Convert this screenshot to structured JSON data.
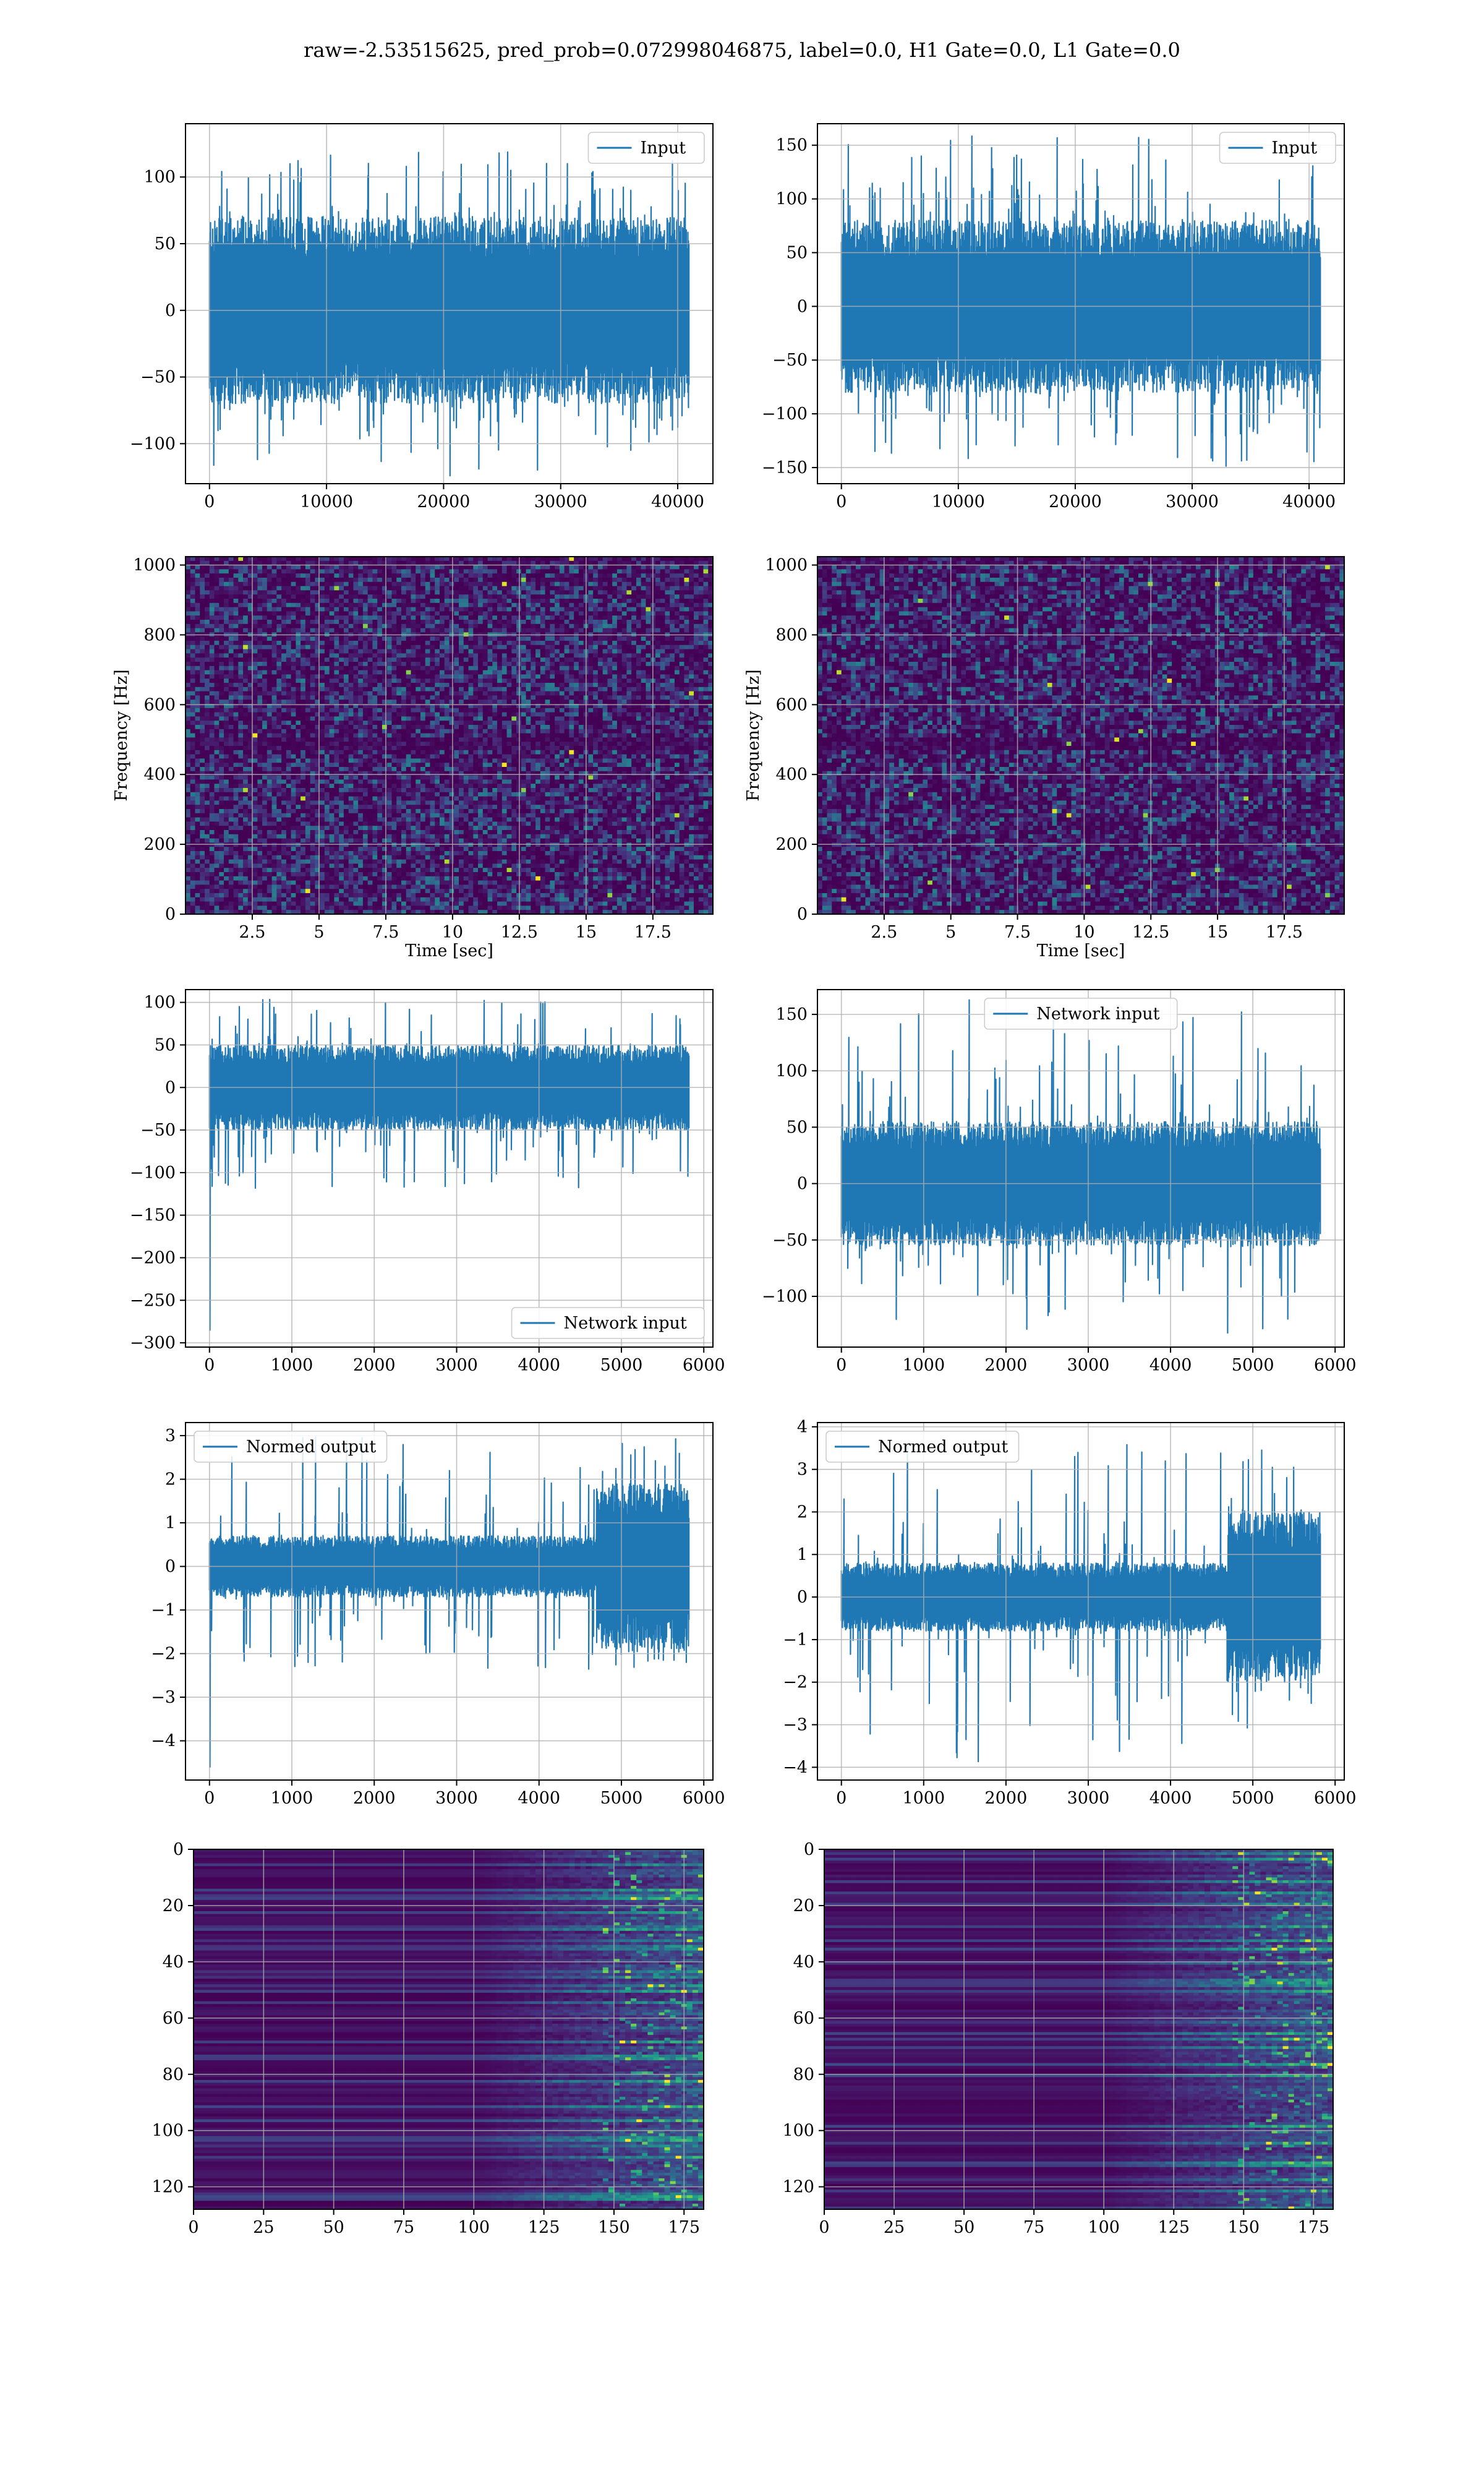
{
  "title": "raw=-2.53515625, pred_prob=0.072998046875, label=0.0, H1 Gate=0.0, L1 Gate=0.0",
  "colors": {
    "line": "#1f77b4",
    "viridis_dark": "#440154",
    "grid": "#b0b0b0"
  },
  "chart_data": [
    {
      "type": "line",
      "row": 1,
      "col": 1,
      "legend": "Input",
      "legend_loc": "upper right",
      "x_range": [
        0,
        40960
      ],
      "ylim": [
        -130,
        140
      ],
      "xticks": [
        0,
        10000,
        20000,
        30000,
        40000
      ],
      "yticks": [
        -100,
        -50,
        0,
        50,
        100
      ],
      "envelope": {
        "core": 70,
        "spike_max": 120,
        "spike_min": -125
      },
      "xlabel": "",
      "ylabel": ""
    },
    {
      "type": "line",
      "row": 1,
      "col": 2,
      "legend": "Input",
      "legend_loc": "upper right",
      "x_range": [
        0,
        40960
      ],
      "ylim": [
        -165,
        170
      ],
      "xticks": [
        0,
        10000,
        20000,
        30000,
        40000
      ],
      "yticks": [
        -150,
        -100,
        -50,
        0,
        50,
        100,
        150
      ],
      "envelope": {
        "core": 80,
        "spike_max": 160,
        "spike_min": -150
      },
      "xlabel": "",
      "ylabel": ""
    },
    {
      "type": "heatmap",
      "row": 2,
      "col": 1,
      "colormap": "viridis",
      "xlim": [
        0,
        19.75
      ],
      "ylim": [
        0,
        1024
      ],
      "xticks": [
        2.5,
        5.0,
        7.5,
        10.0,
        12.5,
        15.0,
        17.5
      ],
      "yticks": [
        0,
        200,
        400,
        600,
        800,
        1000
      ],
      "xlabel": "Time [sec]",
      "ylabel": "Frequency [Hz]"
    },
    {
      "type": "heatmap",
      "row": 2,
      "col": 2,
      "colormap": "viridis",
      "xlim": [
        0,
        19.75
      ],
      "ylim": [
        0,
        1024
      ],
      "xticks": [
        2.5,
        5.0,
        7.5,
        10.0,
        12.5,
        15.0,
        17.5
      ],
      "yticks": [
        0,
        200,
        400,
        600,
        800,
        1000
      ],
      "xlabel": "Time [sec]",
      "ylabel": "Frequency [Hz]"
    },
    {
      "type": "line",
      "row": 3,
      "col": 1,
      "legend": "Network input",
      "legend_loc": "lower right",
      "x_range": [
        0,
        5820
      ],
      "ylim": [
        -305,
        115
      ],
      "xticks": [
        0,
        1000,
        2000,
        3000,
        4000,
        5000,
        6000
      ],
      "yticks": [
        -300,
        -250,
        -200,
        -150,
        -100,
        -50,
        0,
        50,
        100
      ],
      "envelope": {
        "core": 50,
        "spike_max": 105,
        "spike_min": -120,
        "start_min": -285
      },
      "xlabel": "",
      "ylabel": ""
    },
    {
      "type": "line",
      "row": 3,
      "col": 2,
      "legend": "Network input",
      "legend_loc": "upper center",
      "x_range": [
        0,
        5820
      ],
      "ylim": [
        -145,
        172
      ],
      "xticks": [
        0,
        1000,
        2000,
        3000,
        4000,
        5000,
        6000
      ],
      "yticks": [
        -100,
        -50,
        0,
        50,
        100,
        150
      ],
      "envelope": {
        "core": 55,
        "spike_max": 163,
        "spike_min": -135
      },
      "xlabel": "",
      "ylabel": ""
    },
    {
      "type": "line",
      "row": 4,
      "col": 1,
      "legend": "Normed output",
      "legend_loc": "upper left",
      "x_range": [
        0,
        5820
      ],
      "ylim": [
        -4.9,
        3.3
      ],
      "xticks": [
        0,
        1000,
        2000,
        3000,
        4000,
        5000,
        6000
      ],
      "yticks": [
        -4,
        -3,
        -2,
        -1,
        0,
        1,
        2,
        3
      ],
      "envelope": {
        "core": 0.7,
        "spike_max": 3.0,
        "spike_min": -2.4,
        "burst_start": 4700,
        "burst_core": 1.9,
        "start_min": -4.6
      },
      "xlabel": "",
      "ylabel": ""
    },
    {
      "type": "line",
      "row": 4,
      "col": 2,
      "legend": "Normed output",
      "legend_loc": "upper left",
      "x_range": [
        0,
        5820
      ],
      "ylim": [
        -4.3,
        4.1
      ],
      "xticks": [
        0,
        1000,
        2000,
        3000,
        4000,
        5000,
        6000
      ],
      "yticks": [
        -4,
        -3,
        -2,
        -1,
        0,
        1,
        2,
        3,
        4
      ],
      "envelope": {
        "core": 0.8,
        "spike_max": 3.7,
        "spike_min": -3.9,
        "burst_start": 4700,
        "burst_core": 2.0
      },
      "xlabel": "",
      "ylabel": ""
    },
    {
      "type": "heatmap",
      "row": 5,
      "col": 1,
      "colormap": "viridis",
      "xlim": [
        0,
        182
      ],
      "ylim": [
        128,
        0
      ],
      "xticks": [
        0,
        25,
        50,
        75,
        100,
        125,
        150,
        175
      ],
      "yticks": [
        0,
        20,
        40,
        60,
        80,
        100,
        120
      ],
      "xlabel": "",
      "ylabel": ""
    },
    {
      "type": "heatmap",
      "row": 5,
      "col": 2,
      "colormap": "viridis",
      "xlim": [
        0,
        182
      ],
      "ylim": [
        128,
        0
      ],
      "xticks": [
        0,
        25,
        50,
        75,
        100,
        125,
        150,
        175
      ],
      "yticks": [
        0,
        20,
        40,
        60,
        80,
        100,
        120
      ],
      "xlabel": "",
      "ylabel": ""
    }
  ]
}
